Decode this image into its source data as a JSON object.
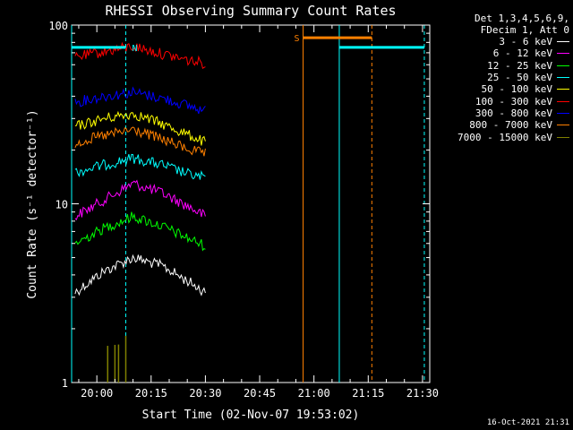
{
  "chart_data": {
    "type": "line",
    "title": "RHESSI Observing Summary Count Rates",
    "xlabel": "Start Time (02-Nov-07 19:53:02)",
    "ylabel": "Count Rate (s⁻¹ detector⁻¹)",
    "y_scale": "log",
    "ylim": [
      1,
      100
    ],
    "xlim": [
      "19:53:02",
      "21:32:00"
    ],
    "x_ticks": [
      "20:00",
      "20:15",
      "20:30",
      "20:45",
      "21:00",
      "21:15",
      "21:30"
    ],
    "y_ticks": [
      "1",
      "10",
      "100"
    ],
    "grid": false,
    "legend_position": "right",
    "detector_info": [
      "Det 1,3,4,5,6,9,",
      "FDecim 1, Att 0"
    ],
    "series": [
      {
        "name": "3 - 6 keV",
        "color": "#ffffff",
        "x": [
          "19:54",
          "20:02",
          "20:10",
          "20:18",
          "20:26",
          "20:30"
        ],
        "y": [
          3.2,
          4.2,
          5.0,
          4.5,
          3.6,
          3.2
        ]
      },
      {
        "name": "6 - 12 keV",
        "color": "#ff00ff",
        "x": [
          "19:54",
          "20:02",
          "20:10",
          "20:18",
          "20:26",
          "20:30"
        ],
        "y": [
          8.5,
          10.5,
          13.0,
          11.5,
          9.5,
          8.5
        ]
      },
      {
        "name": "12 - 25 keV",
        "color": "#00ff00",
        "x": [
          "19:54",
          "20:02",
          "20:10",
          "20:18",
          "20:26",
          "20:30"
        ],
        "y": [
          6.0,
          7.3,
          8.5,
          7.5,
          6.3,
          5.8
        ]
      },
      {
        "name": "25 - 50 keV",
        "color": "#00ffff",
        "x": [
          "19:54",
          "20:02",
          "20:10",
          "20:18",
          "20:26",
          "20:30"
        ],
        "y": [
          15.0,
          16.5,
          18.0,
          16.5,
          14.5,
          14.0
        ]
      },
      {
        "name": "50 - 100 keV",
        "color": "#ffff00",
        "x": [
          "19:54",
          "20:02",
          "20:10",
          "20:18",
          "20:26",
          "20:30"
        ],
        "y": [
          27.0,
          30.0,
          32.0,
          28.0,
          24.0,
          22.0
        ]
      },
      {
        "name": "100 - 300 keV",
        "color": "#ff0000",
        "x": [
          "19:54",
          "20:02",
          "20:10",
          "20:18",
          "20:26",
          "20:30"
        ],
        "y": [
          66.0,
          71.0,
          76.0,
          69.0,
          63.0,
          61.0
        ]
      },
      {
        "name": "300 - 800 keV",
        "color": "#0000ff",
        "x": [
          "19:54",
          "20:02",
          "20:10",
          "20:18",
          "20:26",
          "20:30"
        ],
        "y": [
          37.0,
          40.0,
          42.0,
          39.0,
          35.0,
          33.0
        ]
      },
      {
        "name": "800 - 7000 keV",
        "color": "#ff8000",
        "x": [
          "19:54",
          "20:02",
          "20:10",
          "20:18",
          "20:26",
          "20:30"
        ],
        "y": [
          22.0,
          24.0,
          26.0,
          23.0,
          20.0,
          19.0
        ]
      },
      {
        "name": "7000 - 15000 keV",
        "color": "#808000",
        "x": [
          "20:03",
          "20:05",
          "20:06",
          "20:08"
        ],
        "y": [
          1.6,
          1.6,
          1.6,
          1.6
        ]
      }
    ],
    "flag_bars": [
      {
        "label": "",
        "color": "#00ffff",
        "start": "19:53:02",
        "end": "20:08:00",
        "level": 75
      },
      {
        "label": "N",
        "color": "#00ffff",
        "start": "20:09:00",
        "end": "20:09:00",
        "level": 75
      },
      {
        "label": "S",
        "color": "#ff8000",
        "start": "20:57:00",
        "end": "21:16:00",
        "level": 85
      },
      {
        "label": "",
        "color": "#00ffff",
        "start": "21:07:00",
        "end": "21:30:30",
        "level": 75
      }
    ],
    "vertical_markers": [
      {
        "time": "19:53:02",
        "color": "#00ffff",
        "style": "solid"
      },
      {
        "time": "20:08:00",
        "color": "#00ffff",
        "style": "dashed"
      },
      {
        "time": "20:57:00",
        "color": "#ff8000",
        "style": "solid"
      },
      {
        "time": "21:07:00",
        "color": "#00ffff",
        "style": "solid"
      },
      {
        "time": "21:16:00",
        "color": "#ff8000",
        "style": "dashed"
      },
      {
        "time": "21:30:30",
        "color": "#00ffff",
        "style": "dashed"
      }
    ]
  },
  "footer": {
    "date": "16-Oct-2021 21:31"
  }
}
